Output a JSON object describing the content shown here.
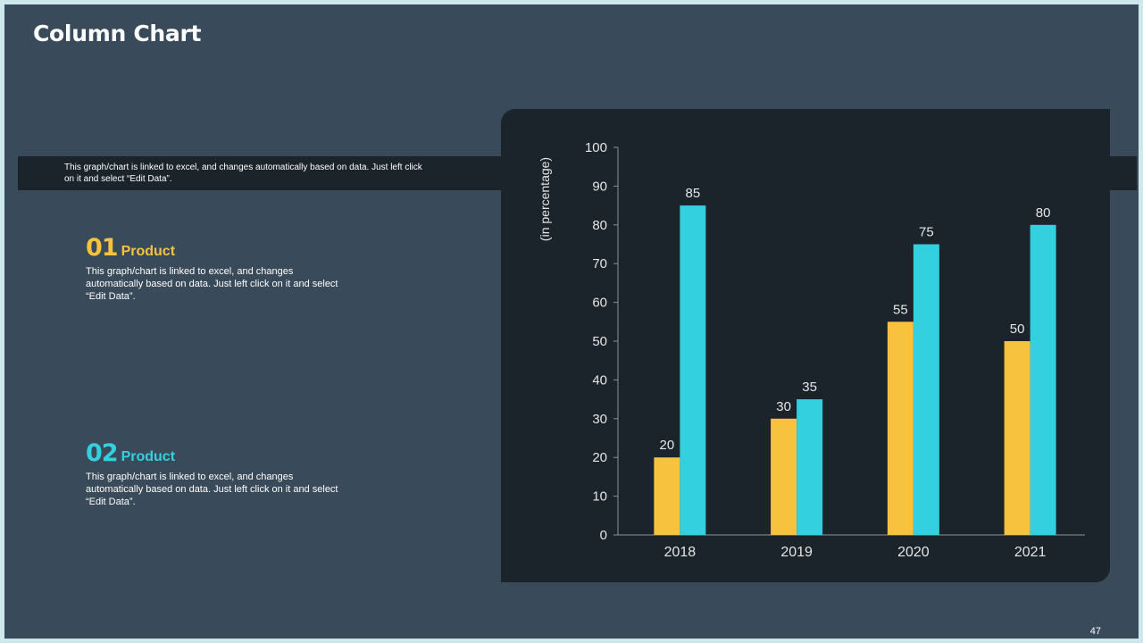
{
  "title": "Column Chart",
  "band_text": "This graph/chart is linked to excel, and changes automatically based on data. Just left click on it and select “Edit Data”.",
  "items": [
    {
      "number": "01",
      "label": "Product",
      "description": "This graph/chart is linked to excel,  and changes automatically based on data. Just left click on it and select “Edit Data”."
    },
    {
      "number": "02",
      "label": "Product",
      "description": "This graph/chart is linked to excel,  and changes automatically based on data. Just left click on it and select “Edit Data”."
    }
  ],
  "page_number": "47",
  "colors": {
    "series1": "#f7c23e",
    "series2": "#33d1df"
  },
  "chart_data": {
    "type": "bar",
    "title": "",
    "categories": [
      "2018",
      "2019",
      "2020",
      "2021"
    ],
    "series": [
      {
        "name": "Product 01",
        "values": [
          20,
          30,
          55,
          50
        ]
      },
      {
        "name": "Product 02",
        "values": [
          85,
          35,
          75,
          80
        ]
      }
    ],
    "xlabel": "",
    "ylabel": "(in percentage)",
    "ylim": [
      0,
      100
    ],
    "yticks": [
      0,
      10,
      20,
      30,
      40,
      50,
      60,
      70,
      80,
      90,
      100
    ],
    "data_labels": true,
    "grid": false
  }
}
